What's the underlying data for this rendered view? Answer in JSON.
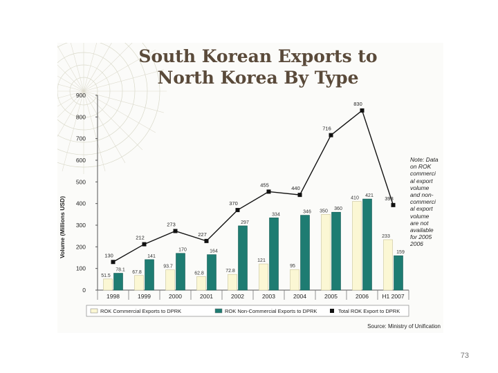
{
  "page_number": "73",
  "chart_data": {
    "type": "bar",
    "title": "South Korean Exports to North Korea By Type",
    "title_lines": [
      "South Korean Exports to",
      "North Korea By Type"
    ],
    "ylabel": "Volume (Millions USD)",
    "xlabel": "",
    "ylim": [
      0,
      900
    ],
    "yticks": [
      "0",
      "100",
      "200",
      "300",
      "400",
      "500",
      "600",
      "700",
      "800",
      "900"
    ],
    "categories": [
      "1998",
      "1999",
      "2000",
      "2001",
      "2002",
      "2003",
      "2004",
      "2005",
      "2006",
      "H1 2007"
    ],
    "series": [
      {
        "name": "ROK Commercial Exports to DPRK",
        "kind": "bar",
        "color": "#fbf7d4",
        "values": [
          51.5,
          67.8,
          93.7,
          62.8,
          72.8,
          121,
          95,
          350,
          410,
          233
        ],
        "labels": [
          "51.5",
          "67.8",
          "93.7",
          "62.8",
          "72.8",
          "121",
          "95",
          "350",
          "410",
          "233"
        ]
      },
      {
        "name": "ROK Non-Commercial Exports to DPRK",
        "kind": "bar",
        "color": "#1e7c72",
        "values": [
          78.1,
          141,
          170,
          164,
          297,
          334,
          346,
          360,
          421,
          159
        ],
        "labels": [
          "78.1",
          "141",
          "170",
          "164",
          "297",
          "334",
          "346",
          "360",
          "421",
          "159"
        ]
      },
      {
        "name": "Total ROK Export to DPRK",
        "kind": "line",
        "color": "#111111",
        "values": [
          130,
          212,
          273,
          227,
          370,
          455,
          440,
          716,
          830,
          393
        ],
        "labels": [
          "130",
          "212",
          "273",
          "227",
          "370",
          "455",
          "440",
          "716",
          "830",
          "393"
        ]
      }
    ],
    "legend_placement": "bottom",
    "grid": false
  },
  "note_lines": [
    "Note: Data",
    "on ROK",
    "commerci",
    "al export",
    "volume",
    "and non-",
    "commerci",
    "al export",
    "volume",
    "are not",
    "available",
    "for 2005",
    "2006"
  ],
  "source": "Source: Ministry of Unification"
}
